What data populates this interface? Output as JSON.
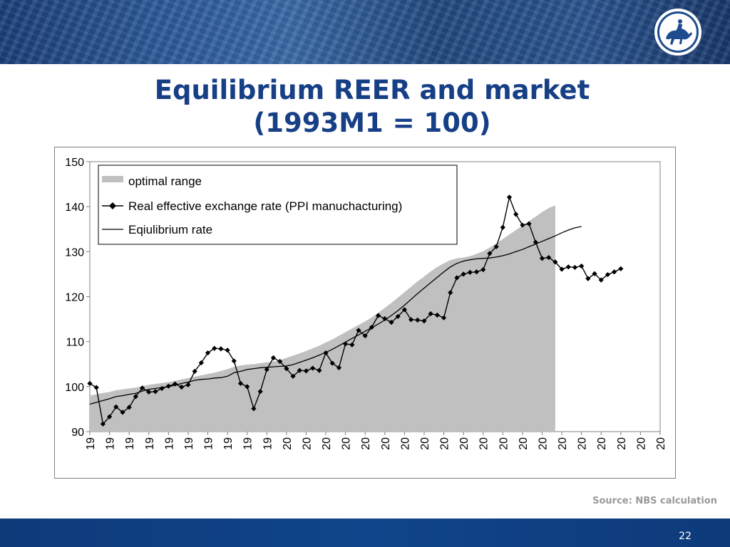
{
  "slide": {
    "title_line1": "Equilibrium REER and market",
    "title_line2": "(1993M1 = 100)",
    "source": "Source: NBS calculation",
    "page_number": "22"
  },
  "colors": {
    "banner": "#1f4b8a",
    "title": "#163f86",
    "footer": "#0e3a7a",
    "range_fill": "#c0c0c0",
    "line": "#000000"
  },
  "chart_data": {
    "type": "line",
    "ylim": [
      90,
      150
    ],
    "yticks": [
      90,
      100,
      110,
      120,
      130,
      140,
      150
    ],
    "xtick_labels": [
      "19",
      "19",
      "19",
      "19",
      "19",
      "19",
      "19",
      "19",
      "19",
      "19",
      "20",
      "20",
      "20",
      "20",
      "20",
      "20",
      "20",
      "20",
      "20",
      "20",
      "20",
      "20",
      "20",
      "20",
      "20",
      "20",
      "20",
      "20",
      "20",
      "20"
    ],
    "legend": [
      "optimal range",
      "Real effective exchange rate (PPI manuchacturing)",
      "Eqiulibrium rate"
    ],
    "legend_position": "top-left",
    "series": [
      {
        "name": "optimal range",
        "kind": "area",
        "values": [
          98.0,
          98.3,
          98.6,
          98.8,
          99.2,
          99.4,
          99.6,
          99.8,
          100.1,
          100.4,
          100.6,
          100.8,
          101.0,
          101.3,
          101.6,
          101.9,
          102.2,
          102.5,
          102.8,
          103.1,
          103.5,
          103.9,
          104.4,
          104.7,
          104.9,
          105.0,
          105.2,
          105.4,
          105.6,
          105.9,
          106.4,
          106.9,
          107.4,
          107.9,
          108.5,
          109.1,
          109.8,
          110.5,
          111.3,
          112.1,
          112.9,
          113.7,
          114.5,
          115.4,
          116.4,
          117.5,
          118.6,
          119.8,
          121.0,
          122.2,
          123.4,
          124.5,
          125.6,
          126.6,
          127.4,
          128.1,
          128.5,
          128.7,
          129.0,
          129.5,
          130.1,
          130.9,
          131.8,
          132.8,
          133.8,
          134.8,
          135.8,
          136.8,
          137.8,
          138.8,
          139.7,
          140.3
        ]
      },
      {
        "name": "Real effective exchange rate (PPI manuchacturing)",
        "kind": "line-marker",
        "values": [
          100.7,
          99.8,
          91.7,
          93.3,
          95.5,
          94.3,
          95.4,
          97.8,
          99.7,
          98.8,
          98.9,
          99.6,
          100.1,
          100.6,
          99.9,
          100.4,
          103.4,
          105.3,
          107.5,
          108.5,
          108.4,
          108.1,
          105.7,
          100.7,
          100.0,
          95.1,
          98.9,
          103.8,
          106.4,
          105.6,
          104.0,
          102.3,
          103.6,
          103.5,
          104.1,
          103.6,
          107.5,
          105.2,
          104.2,
          109.5,
          109.3,
          112.5,
          111.3,
          113.2,
          115.8,
          115.1,
          114.3,
          115.6,
          117.1,
          114.9,
          114.8,
          114.6,
          116.2,
          115.9,
          115.3,
          120.9,
          124.2,
          125.0,
          125.4,
          125.5,
          126.0,
          129.6,
          131.1,
          135.4,
          142.1,
          138.3,
          135.9,
          136.2,
          132.1,
          128.5,
          128.7,
          127.7,
          126.1,
          126.6,
          126.5,
          126.8,
          124.0,
          125.1,
          123.7,
          124.9,
          125.5,
          126.2
        ]
      },
      {
        "name": "Eqiulibrium rate",
        "kind": "line",
        "values": [
          96.1,
          96.5,
          96.9,
          97.3,
          97.8,
          98.0,
          98.3,
          98.5,
          99.0,
          99.4,
          99.6,
          99.8,
          100.0,
          100.3,
          100.7,
          101.0,
          101.4,
          101.6,
          101.7,
          101.9,
          102.0,
          102.3,
          103.1,
          103.4,
          103.8,
          104.0,
          104.2,
          104.3,
          104.4,
          104.5,
          104.6,
          104.9,
          105.4,
          105.9,
          106.4,
          107.0,
          107.6,
          108.3,
          109.1,
          109.9,
          110.7,
          111.5,
          112.3,
          113.1,
          113.9,
          114.8,
          115.8,
          116.9,
          118.1,
          119.4,
          120.7,
          121.9,
          123.1,
          124.3,
          125.5,
          126.6,
          127.4,
          127.9,
          128.2,
          128.4,
          128.5,
          128.6,
          128.8,
          129.1,
          129.5,
          130.0,
          130.5,
          131.1,
          131.7,
          132.3,
          132.9,
          133.5,
          134.2,
          134.8,
          135.3,
          135.6
        ]
      }
    ]
  }
}
